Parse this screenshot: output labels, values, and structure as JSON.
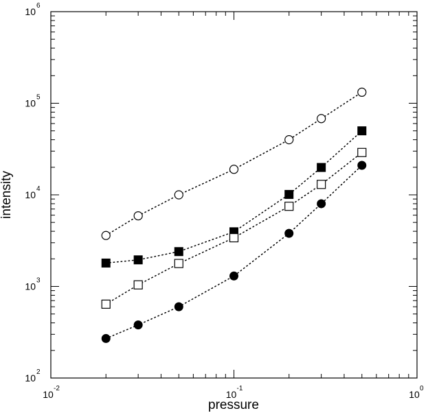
{
  "chart_data": {
    "type": "scatter",
    "title": "",
    "xlabel": "pressure",
    "ylabel": "intensity",
    "xscale": "log",
    "yscale": "log",
    "xlim": [
      0.01,
      1
    ],
    "ylim": [
      100,
      1000000
    ],
    "grid": false,
    "legend": "none",
    "connector": "dotted",
    "x_ticks": [
      {
        "base": "10",
        "exp": "-2"
      },
      {
        "base": "10",
        "exp": "-1"
      },
      {
        "base": "10",
        "exp": "0"
      }
    ],
    "y_ticks": [
      {
        "base": "10",
        "exp": "2"
      },
      {
        "base": "10",
        "exp": "3"
      },
      {
        "base": "10",
        "exp": "4"
      },
      {
        "base": "10",
        "exp": "5"
      },
      {
        "base": "10",
        "exp": "6"
      }
    ],
    "x": [
      0.02,
      0.03,
      0.05,
      0.1,
      0.2,
      0.3,
      0.5
    ],
    "series": [
      {
        "marker": "open-circle",
        "values": [
          3600,
          5900,
          10000,
          19000,
          40000,
          68000,
          132000
        ]
      },
      {
        "marker": "filled-square",
        "values": [
          1800,
          1950,
          2400,
          3950,
          10100,
          19900,
          50000
        ]
      },
      {
        "marker": "open-square",
        "values": [
          640,
          1040,
          1780,
          3400,
          7500,
          13000,
          29000
        ]
      },
      {
        "marker": "filled-circle",
        "values": [
          270,
          380,
          600,
          1300,
          3800,
          8000,
          21000
        ]
      }
    ]
  }
}
